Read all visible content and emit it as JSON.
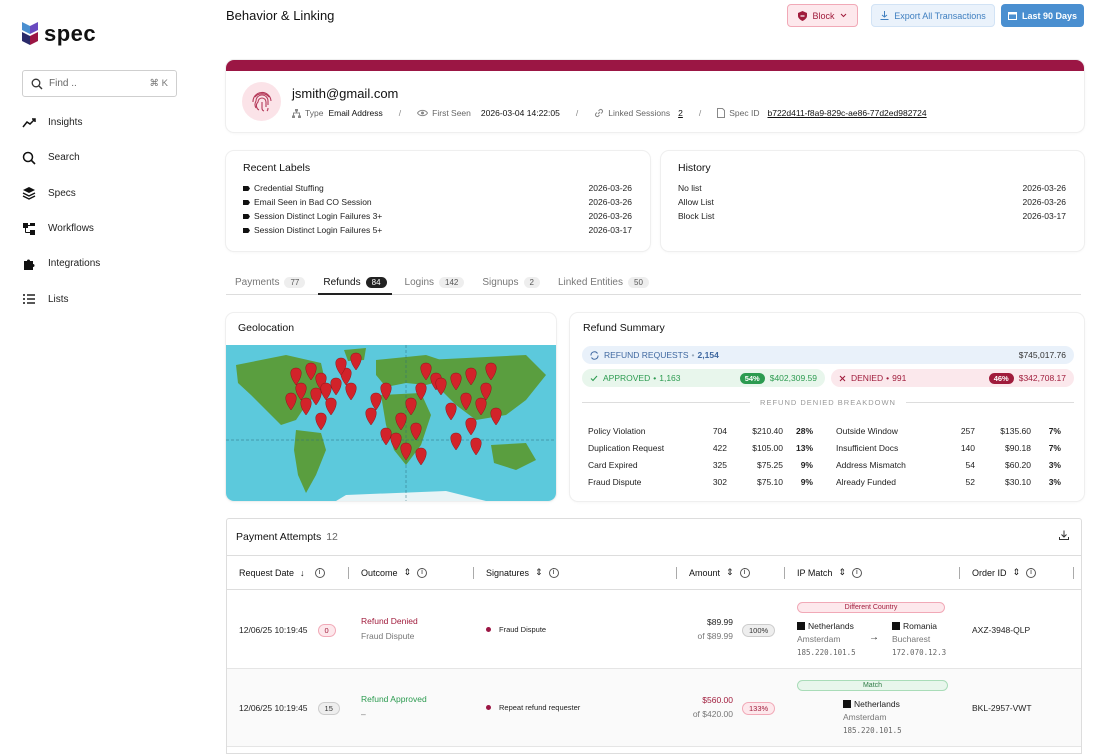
{
  "brand": {
    "name": "spec"
  },
  "search": {
    "placeholder": "Find ..",
    "shortcut": "⌘ K"
  },
  "nav": [
    {
      "label": "Insights",
      "icon": "trend-icon"
    },
    {
      "label": "Search",
      "icon": "search-icon"
    },
    {
      "label": "Specs",
      "icon": "layers-icon"
    },
    {
      "label": "Workflows",
      "icon": "workflow-icon"
    },
    {
      "label": "Integrations",
      "icon": "puzzle-icon"
    },
    {
      "label": "Lists",
      "icon": "list-icon"
    }
  ],
  "header": {
    "title": "Behavior & Linking",
    "block_label": "Block",
    "export_label": "Export All Transactions",
    "range_label": "Last 90 Days"
  },
  "profile": {
    "email": "jsmith@gmail.com",
    "type_label": "Type",
    "type_value": "Email Address",
    "first_seen_label": "First Seen",
    "first_seen_value": "2026-03-04 14:22:05",
    "linked_label": "Linked Sessions",
    "linked_value": "2",
    "spec_label": "Spec ID",
    "spec_value": "b722d411-f8a9-829c-ae86-77d2ed982724"
  },
  "recent_labels": {
    "title": "Recent Labels",
    "items": [
      {
        "label": "Credential Stuffing",
        "date": "2026-03-26"
      },
      {
        "label": "Email Seen in Bad CO Session",
        "date": "2026-03-26"
      },
      {
        "label": "Session Distinct Login Failures 3+",
        "date": "2026-03-26"
      },
      {
        "label": "Session Distinct Login Failures 5+",
        "date": "2026-03-17"
      }
    ]
  },
  "history": {
    "title": "History",
    "items": [
      {
        "label": "No list",
        "date": "2026-03-26"
      },
      {
        "label": "Allow List",
        "date": "2026-03-26"
      },
      {
        "label": "Block List",
        "date": "2026-03-17"
      }
    ]
  },
  "tabs": [
    {
      "label": "Payments",
      "count": "77"
    },
    {
      "label": "Refunds",
      "count": "84"
    },
    {
      "label": "Logins",
      "count": "142"
    },
    {
      "label": "Signups",
      "count": "2"
    },
    {
      "label": "Linked Entities",
      "count": "50"
    }
  ],
  "geo": {
    "title": "Geolocation"
  },
  "refund_summary": {
    "title": "Refund Summary",
    "requests_label": "REFUND REQUESTS",
    "requests_count": "2,154",
    "requests_amount": "$745,017.76",
    "approved_label": "APPROVED",
    "approved_count": "1,163",
    "approved_pct": "54%",
    "approved_amount": "$402,309.59",
    "denied_label": "DENIED",
    "denied_count": "991",
    "denied_pct": "46%",
    "denied_amount": "$342,708.17",
    "breakdown_title": "REFUND DENIED BREAKDOWN",
    "left": [
      {
        "name": "Policy Violation",
        "count": "704",
        "amount": "$210.40",
        "pct": "28%"
      },
      {
        "name": "Duplication Request",
        "count": "422",
        "amount": "$105.00",
        "pct": "13%"
      },
      {
        "name": "Card Expired",
        "count": "325",
        "amount": "$75.25",
        "pct": "9%"
      },
      {
        "name": "Fraud Dispute",
        "count": "302",
        "amount": "$75.10",
        "pct": "9%"
      }
    ],
    "right": [
      {
        "name": "Outside Window",
        "count": "257",
        "amount": "$135.60",
        "pct": "7%"
      },
      {
        "name": "Insufficient Docs",
        "count": "140",
        "amount": "$90.18",
        "pct": "7%"
      },
      {
        "name": "Address Mismatch",
        "count": "54",
        "amount": "$60.20",
        "pct": "3%"
      },
      {
        "name": "Already Funded",
        "count": "52",
        "amount": "$30.10",
        "pct": "3%"
      }
    ]
  },
  "payments": {
    "title": "Payment Attempts",
    "count": "12",
    "columns": [
      "Request Date",
      "Outcome",
      "Signatures",
      "Amount",
      "IP Match",
      "Order ID"
    ],
    "rows": [
      {
        "date": "12/06/25 10:19:45",
        "badge": "0",
        "outcome": "Refund Denied",
        "reason": "Fraud Dispute",
        "signature": "Fraud Dispute",
        "amount": "$89.99",
        "of": "of $89.99",
        "pct": "100%",
        "ip_tag": "Different Country",
        "ip_from_country": "Netherlands",
        "ip_from_city": "Amsterdam",
        "ip_from_ip": "185.220.101.5",
        "ip_to_country": "Romania",
        "ip_to_city": "Bucharest",
        "ip_to_ip": "172.070.12.3",
        "order": "AXZ-3948-QLP"
      },
      {
        "date": "12/06/25 10:19:45",
        "badge": "15",
        "outcome": "Refund Approved",
        "reason": "–",
        "signature": "Repeat refund requester",
        "amount": "$560.00",
        "of": "of $420.00",
        "pct": "133%",
        "ip_tag": "Match",
        "ip_from_country": "Netherlands",
        "ip_from_city": "Amsterdam",
        "ip_from_ip": "185.220.101.5",
        "order": "BKL-2957-VWT"
      }
    ]
  },
  "colors": {
    "brand": "#9b1644",
    "accent": "#4a8fd0",
    "approved": "#2c9b50",
    "denied": "#a01c3c",
    "map_water": "#5cc9dc",
    "map_land": "#5a9e3f",
    "marker": "#d2232a"
  }
}
